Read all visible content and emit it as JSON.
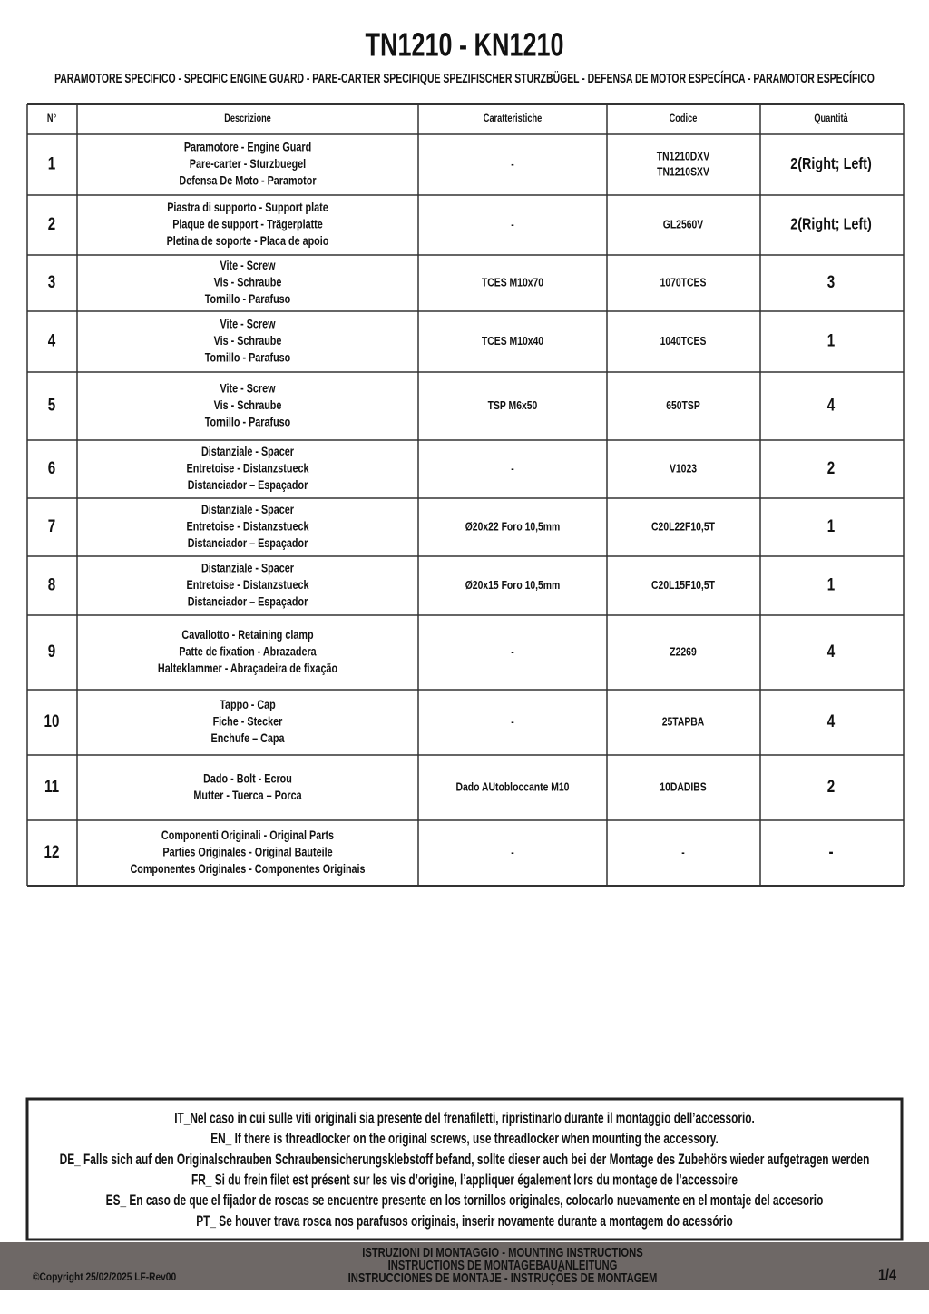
{
  "header": {
    "title": "TN1210 - KN1210",
    "subtitle": "PARAMOTORE SPECIFICO  -  SPECIFIC ENGINE GUARD - PARE-CARTER SPECIFIQUE SPEZIFISCHER STURZBÜGEL - DEFENSA DE MOTOR ESPECÍFICA - PARAMOTOR ESPECÍFICO"
  },
  "table": {
    "headers": [
      "N°",
      "Descrizione",
      "Caratteristiche",
      "Codice",
      "Quantità"
    ],
    "rows": [
      {
        "n": "1",
        "description": [
          "Paramotore - Engine Guard",
          "Pare-carter - Sturzbuegel",
          "Defensa De Moto - Paramotor"
        ],
        "characteristics": "-",
        "code": [
          "TN1210DXV",
          "TN1210SXV"
        ],
        "quantity": "2(Right; Left)"
      },
      {
        "n": "2",
        "description": [
          "Piastra di supporto - Support plate",
          "Plaque de support - Trägerplatte",
          "Pletina de soporte - Placa de apoio"
        ],
        "characteristics": "-",
        "code": [
          "GL2560V"
        ],
        "quantity": "2(Right; Left)"
      },
      {
        "n": "3",
        "description": [
          "Vite - Screw",
          "Vis - Schraube",
          "Tornillo - Parafuso"
        ],
        "characteristics": "TCES M10x70",
        "code": [
          "1070TCES"
        ],
        "quantity": "3"
      },
      {
        "n": "4",
        "description": [
          "Vite - Screw",
          "Vis - Schraube",
          "Tornillo - Parafuso"
        ],
        "characteristics": "TCES M10x40",
        "code": [
          "1040TCES"
        ],
        "quantity": "1"
      },
      {
        "n": "5",
        "description": [
          "Vite - Screw",
          "Vis - Schraube",
          "Tornillo - Parafuso"
        ],
        "characteristics": "TSP M6x50",
        "code": [
          "650TSP"
        ],
        "quantity": "4"
      },
      {
        "n": "6",
        "description": [
          "Distanziale - Spacer",
          "Entretoise - Distanzstueck",
          "Distanciador – Espaçador"
        ],
        "characteristics": "-",
        "code": [
          "V1023"
        ],
        "quantity": "2"
      },
      {
        "n": "7",
        "description": [
          "Distanziale - Spacer",
          "Entretoise - Distanzstueck",
          "Distanciador – Espaçador"
        ],
        "characteristics": "Ø20x22 Foro 10,5mm",
        "code": [
          "C20L22F10,5T"
        ],
        "quantity": "1"
      },
      {
        "n": "8",
        "description": [
          "Distanziale - Spacer",
          "Entretoise - Distanzstueck",
          "Distanciador – Espaçador"
        ],
        "characteristics": "Ø20x15 Foro 10,5mm",
        "code": [
          "C20L15F10,5T"
        ],
        "quantity": "1"
      },
      {
        "n": "9",
        "description": [
          "Cavallotto - Retaining clamp",
          "Patte de fixation - Abrazadera",
          "Halteklammer - Abraçadeira de fixação"
        ],
        "characteristics": "-",
        "code": [
          "Z2269"
        ],
        "quantity": "4"
      },
      {
        "n": "10",
        "description": [
          "Tappo - Cap",
          "Fiche - Stecker",
          "Enchufe – Capa"
        ],
        "characteristics": "-",
        "code": [
          "25TAPBA"
        ],
        "quantity": "4"
      },
      {
        "n": "11",
        "description": [
          "Dado - Bolt - Ecrou",
          "Mutter - Tuerca – Porca"
        ],
        "characteristics": "Dado AUtobloccante M10",
        "code": [
          "10DADIBS"
        ],
        "quantity": "2"
      },
      {
        "n": "12",
        "description": [
          "Componenti Originali - Original Parts",
          "Parties Originales - Original Bauteile",
          "Componentes Originales - Componentes Originais"
        ],
        "characteristics": "-",
        "code": [
          "-"
        ],
        "quantity": "-"
      }
    ]
  },
  "notes": [
    "IT_Nel caso in cui sulle viti originali sia presente del frenafiletti, ripristinarlo durante il montaggio dell’accessorio.",
    "EN_ If there is threadlocker on the original screws, use threadlocker when mounting the accessory.",
    "DE_ Falls sich auf den Originalschrauben Schraubensicherungsklebstoff befand, sollte dieser auch bei der Montage des Zubehörs wieder aufgetragen werden",
    "FR_ Si du frein filet est présent sur les vis d’origine, l’appliquer également lors du montage de l’accessoire",
    "ES_ En caso de que el fijador de roscas se encuentre presente en los tornillos originales, colocarlo nuevamente en el montaje del accesorio",
    "PT_ Se houver trava rosca nos parafusos originais, inserir novamente durante a montagem do acessório"
  ],
  "footer": {
    "copyright": "©Copyright 25/02/2025 LF-Rev00",
    "instructions": [
      "ISTRUZIONI DI MONTAGGIO  -  MOUNTING INSTRUCTIONS",
      "INSTRUCTIONS DE MONTAGEBAUANLEITUNG",
      "INSTRUCCIONES DE MONTAJE - INSTRUÇÕES DE MONTAGEM"
    ],
    "page": "1/4"
  }
}
